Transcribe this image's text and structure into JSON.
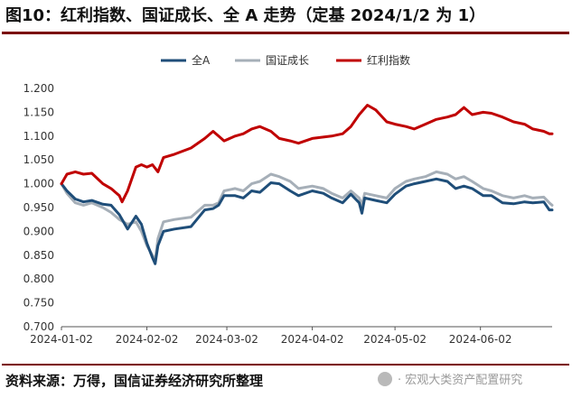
{
  "figure": {
    "title": "图10：红利指数、国证成长、全 A 走势（定基 2024/1/2 为 1）",
    "source": "资料来源：万得，国信证券经济研究所整理",
    "watermark": "· 宏观大类资产配置研究"
  },
  "chart_data": {
    "type": "line",
    "title": "",
    "xlabel": "",
    "ylabel": "",
    "ylim": [
      0.7,
      1.2
    ],
    "yticks": [
      "0.700",
      "0.750",
      "0.800",
      "0.850",
      "0.900",
      "0.950",
      "1.000",
      "1.050",
      "1.100",
      "1.150",
      "1.200"
    ],
    "xlim": [
      "2024-01-02",
      "2024-06-28"
    ],
    "xticks": [
      "2024-01-02",
      "2024-02-02",
      "2024-03-02",
      "2024-04-02",
      "2024-05-02",
      "2024-06-02"
    ],
    "grid": false,
    "legend_position": "top-center",
    "series": [
      {
        "name": "全A",
        "color": "#1f4e79",
        "points": [
          [
            "2024-01-02",
            1.0
          ],
          [
            "2024-01-04",
            0.985
          ],
          [
            "2024-01-07",
            0.968
          ],
          [
            "2024-01-10",
            0.962
          ],
          [
            "2024-01-13",
            0.965
          ],
          [
            "2024-01-17",
            0.957
          ],
          [
            "2024-01-20",
            0.955
          ],
          [
            "2024-01-23",
            0.935
          ],
          [
            "2024-01-26",
            0.905
          ],
          [
            "2024-01-29",
            0.932
          ],
          [
            "2024-01-31",
            0.915
          ],
          [
            "2024-02-02",
            0.875
          ],
          [
            "2024-02-04",
            0.845
          ],
          [
            "2024-02-05",
            0.832
          ],
          [
            "2024-02-06",
            0.87
          ],
          [
            "2024-02-08",
            0.9
          ],
          [
            "2024-02-12",
            0.905
          ],
          [
            "2024-02-18",
            0.91
          ],
          [
            "2024-02-23",
            0.945
          ],
          [
            "2024-02-26",
            0.948
          ],
          [
            "2024-02-28",
            0.955
          ],
          [
            "2024-03-01",
            0.975
          ],
          [
            "2024-03-05",
            0.975
          ],
          [
            "2024-03-08",
            0.97
          ],
          [
            "2024-03-11",
            0.985
          ],
          [
            "2024-03-14",
            0.982
          ],
          [
            "2024-03-18",
            1.002
          ],
          [
            "2024-03-21",
            1.0
          ],
          [
            "2024-03-25",
            0.985
          ],
          [
            "2024-03-28",
            0.975
          ],
          [
            "2024-04-02",
            0.985
          ],
          [
            "2024-04-06",
            0.98
          ],
          [
            "2024-04-09",
            0.97
          ],
          [
            "2024-04-13",
            0.96
          ],
          [
            "2024-04-16",
            0.978
          ],
          [
            "2024-04-19",
            0.96
          ],
          [
            "2024-04-20",
            0.938
          ],
          [
            "2024-04-21",
            0.97
          ],
          [
            "2024-04-25",
            0.965
          ],
          [
            "2024-04-29",
            0.96
          ],
          [
            "2024-05-02",
            0.978
          ],
          [
            "2024-05-06",
            0.995
          ],
          [
            "2024-05-09",
            1.0
          ],
          [
            "2024-05-13",
            1.005
          ],
          [
            "2024-05-17",
            1.01
          ],
          [
            "2024-05-21",
            1.005
          ],
          [
            "2024-05-24",
            0.99
          ],
          [
            "2024-05-27",
            0.995
          ],
          [
            "2024-05-30",
            0.99
          ],
          [
            "2024-06-03",
            0.975
          ],
          [
            "2024-06-06",
            0.975
          ],
          [
            "2024-06-10",
            0.96
          ],
          [
            "2024-06-14",
            0.958
          ],
          [
            "2024-06-18",
            0.962
          ],
          [
            "2024-06-21",
            0.96
          ],
          [
            "2024-06-25",
            0.962
          ],
          [
            "2024-06-27",
            0.945
          ],
          [
            "2024-06-28",
            0.945
          ]
        ]
      },
      {
        "name": "国证成长",
        "color": "#a6afb8",
        "points": [
          [
            "2024-01-02",
            1.0
          ],
          [
            "2024-01-04",
            0.98
          ],
          [
            "2024-01-07",
            0.96
          ],
          [
            "2024-01-10",
            0.955
          ],
          [
            "2024-01-13",
            0.96
          ],
          [
            "2024-01-17",
            0.95
          ],
          [
            "2024-01-20",
            0.94
          ],
          [
            "2024-01-23",
            0.925
          ],
          [
            "2024-01-26",
            0.915
          ],
          [
            "2024-01-29",
            0.92
          ],
          [
            "2024-01-31",
            0.9
          ],
          [
            "2024-02-02",
            0.87
          ],
          [
            "2024-02-04",
            0.85
          ],
          [
            "2024-02-05",
            0.838
          ],
          [
            "2024-02-06",
            0.885
          ],
          [
            "2024-02-08",
            0.92
          ],
          [
            "2024-02-12",
            0.925
          ],
          [
            "2024-02-18",
            0.93
          ],
          [
            "2024-02-23",
            0.955
          ],
          [
            "2024-02-26",
            0.955
          ],
          [
            "2024-02-28",
            0.96
          ],
          [
            "2024-03-01",
            0.985
          ],
          [
            "2024-03-05",
            0.99
          ],
          [
            "2024-03-08",
            0.985
          ],
          [
            "2024-03-11",
            1.0
          ],
          [
            "2024-03-14",
            1.005
          ],
          [
            "2024-03-18",
            1.02
          ],
          [
            "2024-03-21",
            1.015
          ],
          [
            "2024-03-25",
            1.005
          ],
          [
            "2024-03-28",
            0.99
          ],
          [
            "2024-04-02",
            0.995
          ],
          [
            "2024-04-06",
            0.99
          ],
          [
            "2024-04-09",
            0.98
          ],
          [
            "2024-04-13",
            0.97
          ],
          [
            "2024-04-16",
            0.985
          ],
          [
            "2024-04-19",
            0.97
          ],
          [
            "2024-04-20",
            0.955
          ],
          [
            "2024-04-21",
            0.98
          ],
          [
            "2024-04-25",
            0.975
          ],
          [
            "2024-04-29",
            0.97
          ],
          [
            "2024-05-02",
            0.99
          ],
          [
            "2024-05-06",
            1.005
          ],
          [
            "2024-05-09",
            1.01
          ],
          [
            "2024-05-13",
            1.015
          ],
          [
            "2024-05-17",
            1.025
          ],
          [
            "2024-05-21",
            1.02
          ],
          [
            "2024-05-24",
            1.01
          ],
          [
            "2024-05-27",
            1.015
          ],
          [
            "2024-05-30",
            1.005
          ],
          [
            "2024-06-03",
            0.99
          ],
          [
            "2024-06-06",
            0.985
          ],
          [
            "2024-06-10",
            0.975
          ],
          [
            "2024-06-14",
            0.97
          ],
          [
            "2024-06-18",
            0.975
          ],
          [
            "2024-06-21",
            0.97
          ],
          [
            "2024-06-25",
            0.972
          ],
          [
            "2024-06-27",
            0.96
          ],
          [
            "2024-06-28",
            0.955
          ]
        ]
      },
      {
        "name": "红利指数",
        "color": "#c00000",
        "points": [
          [
            "2024-01-02",
            1.0
          ],
          [
            "2024-01-04",
            1.02
          ],
          [
            "2024-01-07",
            1.025
          ],
          [
            "2024-01-10",
            1.02
          ],
          [
            "2024-01-13",
            1.022
          ],
          [
            "2024-01-17",
            1.0
          ],
          [
            "2024-01-20",
            0.99
          ],
          [
            "2024-01-23",
            0.975
          ],
          [
            "2024-01-24",
            0.962
          ],
          [
            "2024-01-26",
            0.985
          ],
          [
            "2024-01-29",
            1.035
          ],
          [
            "2024-01-31",
            1.04
          ],
          [
            "2024-02-02",
            1.035
          ],
          [
            "2024-02-04",
            1.04
          ],
          [
            "2024-02-06",
            1.025
          ],
          [
            "2024-02-08",
            1.055
          ],
          [
            "2024-02-12",
            1.062
          ],
          [
            "2024-02-18",
            1.075
          ],
          [
            "2024-02-23",
            1.095
          ],
          [
            "2024-02-26",
            1.11
          ],
          [
            "2024-02-28",
            1.1
          ],
          [
            "2024-03-01",
            1.09
          ],
          [
            "2024-03-05",
            1.1
          ],
          [
            "2024-03-08",
            1.105
          ],
          [
            "2024-03-11",
            1.115
          ],
          [
            "2024-03-14",
            1.12
          ],
          [
            "2024-03-18",
            1.11
          ],
          [
            "2024-03-21",
            1.095
          ],
          [
            "2024-03-25",
            1.09
          ],
          [
            "2024-03-28",
            1.085
          ],
          [
            "2024-04-02",
            1.095
          ],
          [
            "2024-04-06",
            1.098
          ],
          [
            "2024-04-09",
            1.1
          ],
          [
            "2024-04-13",
            1.105
          ],
          [
            "2024-04-16",
            1.12
          ],
          [
            "2024-04-19",
            1.145
          ],
          [
            "2024-04-22",
            1.165
          ],
          [
            "2024-04-25",
            1.155
          ],
          [
            "2024-04-29",
            1.13
          ],
          [
            "2024-05-02",
            1.125
          ],
          [
            "2024-05-06",
            1.12
          ],
          [
            "2024-05-09",
            1.115
          ],
          [
            "2024-05-13",
            1.125
          ],
          [
            "2024-05-17",
            1.135
          ],
          [
            "2024-05-21",
            1.14
          ],
          [
            "2024-05-24",
            1.145
          ],
          [
            "2024-05-27",
            1.16
          ],
          [
            "2024-05-30",
            1.145
          ],
          [
            "2024-06-03",
            1.15
          ],
          [
            "2024-06-06",
            1.148
          ],
          [
            "2024-06-10",
            1.14
          ],
          [
            "2024-06-14",
            1.13
          ],
          [
            "2024-06-18",
            1.125
          ],
          [
            "2024-06-21",
            1.115
          ],
          [
            "2024-06-25",
            1.11
          ],
          [
            "2024-06-27",
            1.105
          ],
          [
            "2024-06-28",
            1.105
          ]
        ]
      }
    ]
  }
}
